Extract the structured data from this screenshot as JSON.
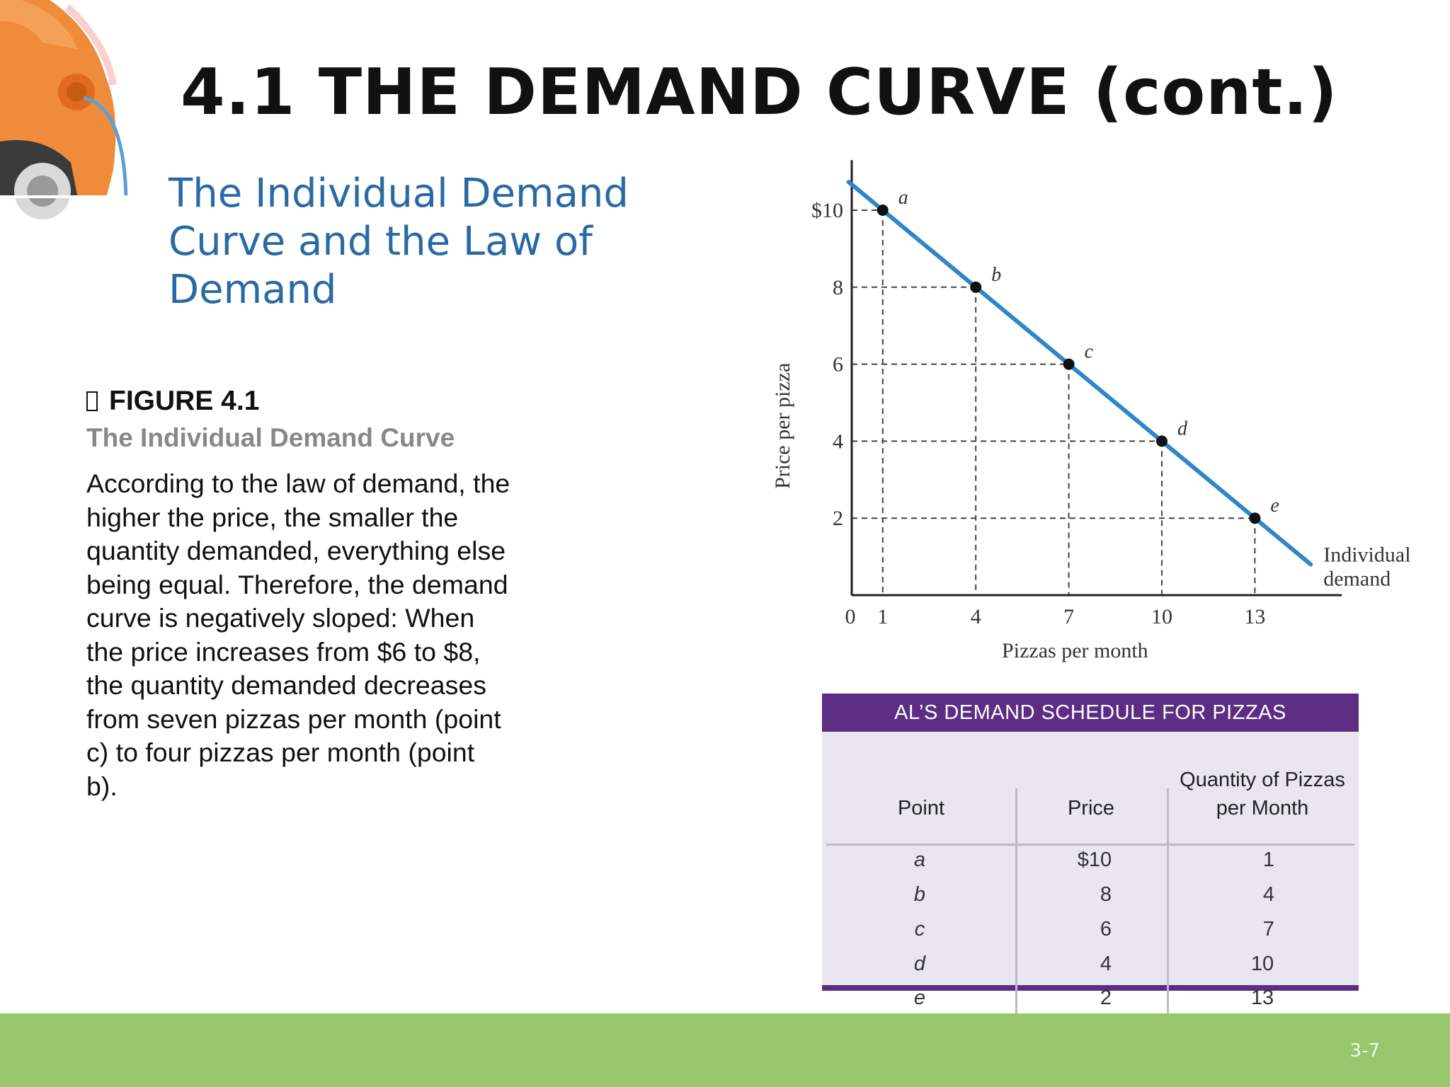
{
  "slide": {
    "title": "4.1 THE DEMAND CURVE (cont.)",
    "subtitle_lines": [
      "The Individual Demand",
      "Curve and the Law of",
      "Demand"
    ],
    "page_number": "3-7"
  },
  "figure": {
    "label": "FIGURE 4.1",
    "caption": "The Individual Demand Curve",
    "text_lines": [
      "According to the law of demand, the",
      "higher the price, the smaller the",
      "quantity demanded, everything else",
      "being equal. Therefore, the demand",
      "curve is negatively sloped: When",
      "the price increases from $6 to $8,",
      "the quantity demanded decreases",
      "from seven pizzas per month (point",
      "c) to four pizzas per month (point",
      "b)."
    ]
  },
  "chart_data": {
    "type": "line",
    "xlabel": "Pizzas per month",
    "ylabel": "Price per pizza",
    "x_ticks": [
      "0",
      "1",
      "4",
      "7",
      "10",
      "13"
    ],
    "y_ticks": [
      "$10",
      "8",
      "6",
      "4",
      "2"
    ],
    "xlim": [
      0,
      15.8
    ],
    "ylim": [
      0,
      11.3
    ],
    "series": [
      {
        "name": "Individual demand",
        "points": [
          {
            "label": "a",
            "x": 1,
            "y": 10
          },
          {
            "label": "b",
            "x": 4,
            "y": 8
          },
          {
            "label": "c",
            "x": 7,
            "y": 6
          },
          {
            "label": "d",
            "x": 10,
            "y": 4
          },
          {
            "label": "e",
            "x": 13,
            "y": 2
          }
        ]
      }
    ],
    "line_extent_x": [
      -0.1,
      14.8
    ],
    "series_label_lines": [
      "Individual",
      "demand"
    ],
    "guides": "dashed",
    "colors": {
      "line": "#2f86c8",
      "point": "#111111"
    }
  },
  "schedule": {
    "title": "AL’S DEMAND SCHEDULE FOR PIZZAS",
    "headers": {
      "point": "Point",
      "price": "Price",
      "quantity_line1": "Quantity of Pizzas",
      "quantity_line2": "per Month"
    },
    "rows": [
      {
        "point": "a",
        "price": "$10",
        "quantity": "1"
      },
      {
        "point": "b",
        "price": "8",
        "quantity": "4"
      },
      {
        "point": "c",
        "price": "6",
        "quantity": "7"
      },
      {
        "point": "d",
        "price": "4",
        "quantity": "10"
      },
      {
        "point": "e",
        "price": "2",
        "quantity": "13"
      }
    ]
  },
  "colors": {
    "title": "#111111",
    "subtitle": "#2a6aa3",
    "caption": "#888888",
    "schedule_header": "#5c2d82",
    "schedule_bg": "#e9e6f1",
    "footer": "#96c76d"
  }
}
